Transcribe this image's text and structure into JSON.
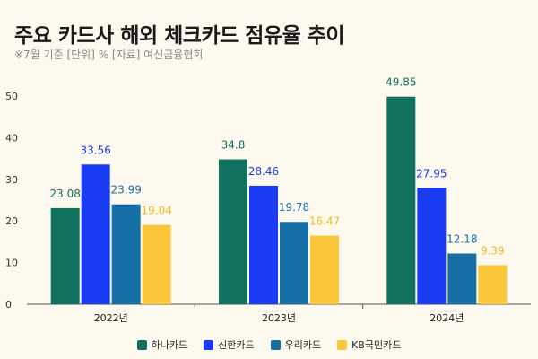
{
  "title": "주요 카드사 해외 체크카드 점유율 추이",
  "subtitle": "※7월 기준 [단위] % [자료] 여신금융협회",
  "chart_data": {
    "type": "bar",
    "categories": [
      "2022년",
      "2023년",
      "2024년"
    ],
    "ylim": [
      0,
      50
    ],
    "yticks": [
      0,
      10,
      20,
      30,
      40,
      50
    ],
    "grid": false,
    "legend": "bottom",
    "series": [
      {
        "name": "하나카드",
        "color": "#11715f",
        "values": [
          23.08,
          34.8,
          49.85
        ]
      },
      {
        "name": "신한카드",
        "color": "#1a3cf5",
        "values": [
          33.56,
          28.46,
          27.95
        ]
      },
      {
        "name": "우리카드",
        "color": "#1670a6",
        "values": [
          23.99,
          19.78,
          12.18
        ]
      },
      {
        "name": "KB국민카드",
        "color": "#fcc63b",
        "values": [
          19.04,
          16.47,
          9.39
        ]
      }
    ],
    "label_colors": [
      "#11715f",
      "#1a3cf5",
      "#1670a6",
      "#f2b824"
    ]
  }
}
